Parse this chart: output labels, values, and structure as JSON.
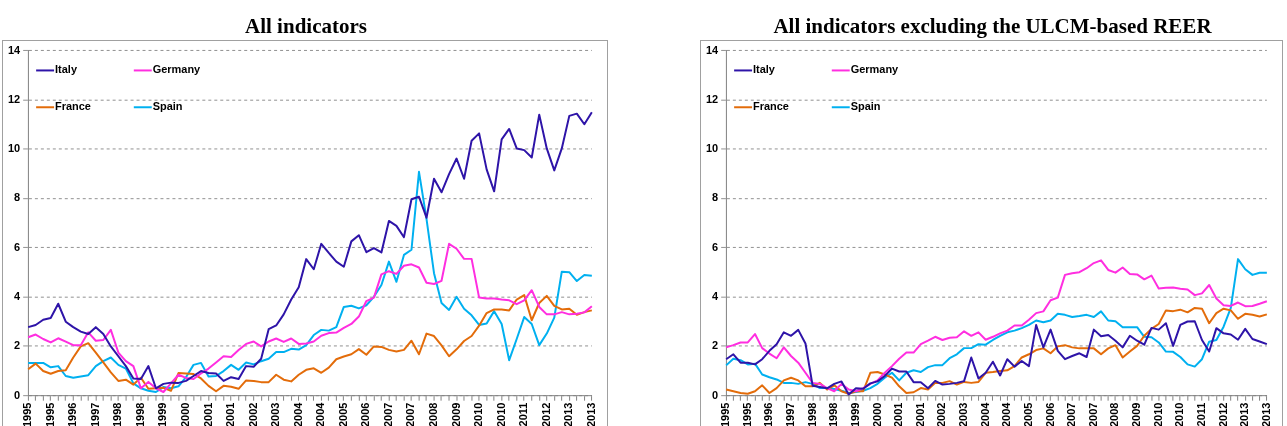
{
  "chart_data": [
    {
      "type": "line",
      "title": "All indicators",
      "categories": [
        "1995",
        null,
        null,
        "1995",
        null,
        null,
        "1996",
        null,
        null,
        "1997",
        null,
        null,
        "1998",
        null,
        null,
        "1998",
        null,
        null,
        "1999",
        null,
        null,
        "2000",
        null,
        null,
        "2001",
        null,
        null,
        "2001",
        null,
        null,
        "2002",
        null,
        null,
        "2003",
        null,
        null,
        "2004",
        null,
        null,
        "2004",
        null,
        null,
        "2005",
        null,
        null,
        "2006",
        null,
        null,
        "2007",
        null,
        null,
        "2007",
        null,
        null,
        "2008",
        null,
        null,
        "2009",
        null,
        null,
        "2010",
        null,
        null,
        "2010",
        null,
        null,
        "2011",
        null,
        null,
        "2012",
        null,
        null,
        "2013",
        null,
        null,
        "2013"
      ],
      "series": [
        {
          "name": "Italy",
          "color": "#2e14a8",
          "values": [
            2.78,
            2.87,
            3.08,
            3.15,
            3.73,
            3.0,
            2.78,
            2.6,
            2.5,
            2.78,
            2.5,
            2.0,
            1.6,
            1.2,
            0.7,
            0.68,
            1.2,
            0.3,
            0.48,
            0.53,
            0.52,
            0.6,
            0.8,
            1.0,
            0.92,
            0.9,
            0.6,
            0.75,
            0.68,
            1.2,
            1.17,
            1.5,
            2.7,
            2.85,
            3.3,
            3.9,
            4.4,
            5.54,
            5.13,
            6.16,
            5.79,
            5.44,
            5.23,
            6.26,
            6.51,
            5.82,
            5.99,
            5.81,
            7.09,
            6.89,
            6.43,
            7.97,
            8.07,
            7.22,
            8.8,
            8.25,
            8.99,
            9.62,
            8.8,
            10.34,
            10.64,
            9.18,
            8.29,
            10.4,
            10.82,
            10.03,
            9.96,
            9.66,
            11.4,
            10.03,
            9.14,
            10.03,
            11.35,
            11.44,
            11.01,
            11.5
          ]
        },
        {
          "name": "Germany",
          "color": "#ff2ee0",
          "values": [
            2.37,
            2.48,
            2.3,
            2.16,
            2.33,
            2.19,
            2.05,
            2.05,
            2.57,
            2.23,
            2.26,
            2.67,
            1.75,
            1.4,
            1.2,
            0.3,
            0.56,
            0.3,
            0.15,
            0.5,
            0.85,
            0.72,
            0.68,
            0.9,
            1.1,
            1.35,
            1.6,
            1.57,
            1.85,
            2.1,
            2.2,
            2.0,
            2.2,
            2.32,
            2.18,
            2.32,
            2.1,
            2.12,
            2.2,
            2.43,
            2.54,
            2.56,
            2.75,
            2.91,
            3.21,
            3.84,
            3.98,
            4.92,
            5.05,
            4.94,
            5.27,
            5.33,
            5.2,
            4.58,
            4.53,
            4.66,
            6.16,
            5.96,
            5.55,
            5.55,
            3.98,
            3.94,
            3.94,
            3.9,
            3.87,
            3.71,
            3.87,
            4.28,
            3.6,
            3.3,
            3.3,
            3.39,
            3.3,
            3.32,
            3.38,
            3.63
          ]
        },
        {
          "name": "France",
          "color": "#e36c0a",
          "values": [
            1.07,
            1.3,
            1.0,
            0.89,
            1.0,
            1.03,
            1.55,
            2.0,
            2.13,
            1.75,
            1.35,
            0.95,
            0.6,
            0.65,
            0.45,
            0.73,
            0.28,
            0.3,
            0.32,
            0.2,
            0.92,
            0.9,
            0.88,
            0.7,
            0.4,
            0.18,
            0.4,
            0.36,
            0.28,
            0.62,
            0.6,
            0.55,
            0.55,
            0.85,
            0.65,
            0.58,
            0.85,
            1.05,
            1.11,
            0.93,
            1.14,
            1.48,
            1.59,
            1.68,
            1.89,
            1.66,
            2.0,
            1.98,
            1.86,
            1.79,
            1.86,
            2.23,
            1.68,
            2.52,
            2.42,
            2.04,
            1.6,
            1.88,
            2.22,
            2.42,
            2.84,
            3.35,
            3.5,
            3.5,
            3.46,
            3.9,
            4.08,
            3.06,
            3.76,
            4.05,
            3.64,
            3.5,
            3.53,
            3.28,
            3.39,
            3.46
          ]
        },
        {
          "name": "Spain",
          "color": "#00b0f0",
          "values": [
            1.33,
            1.33,
            1.33,
            1.15,
            1.2,
            0.8,
            0.73,
            0.78,
            0.83,
            1.2,
            1.4,
            1.55,
            1.25,
            1.1,
            0.5,
            0.3,
            0.2,
            0.15,
            0.35,
            0.3,
            0.38,
            0.75,
            1.25,
            1.33,
            0.78,
            0.8,
            1.0,
            1.25,
            1.05,
            1.35,
            1.27,
            1.4,
            1.5,
            1.77,
            1.77,
            1.9,
            1.87,
            2.05,
            2.46,
            2.67,
            2.64,
            2.78,
            3.6,
            3.65,
            3.54,
            3.67,
            4.01,
            4.49,
            5.44,
            4.62,
            5.71,
            5.92,
            9.08,
            7.17,
            4.97,
            3.76,
            3.48,
            4.01,
            3.53,
            3.26,
            2.87,
            2.93,
            3.43,
            2.91,
            1.44,
            2.3,
            3.19,
            2.91,
            2.05,
            2.52,
            3.17,
            5.03,
            5.01,
            4.65,
            4.9,
            4.87
          ]
        }
      ],
      "ylim": [
        0,
        14
      ],
      "yticks": [
        0,
        2,
        4,
        6,
        8,
        10,
        12,
        14
      ],
      "grid": "y",
      "legend": "top left"
    },
    {
      "type": "line",
      "title": "All indicators excluding the ULCM-based REER",
      "categories": [
        "1995",
        null,
        null,
        "1995",
        null,
        null,
        "1996",
        null,
        null,
        "1997",
        null,
        null,
        "1998",
        null,
        null,
        "1998",
        null,
        null,
        "1999",
        null,
        null,
        "2000",
        null,
        null,
        "2001",
        null,
        null,
        "2001",
        null,
        null,
        "2002",
        null,
        null,
        "2003",
        null,
        null,
        "2004",
        null,
        null,
        "2004",
        null,
        null,
        "2005",
        null,
        null,
        "2006",
        null,
        null,
        "2007",
        null,
        null,
        "2007",
        null,
        null,
        "2008",
        null,
        null,
        "2009",
        null,
        null,
        "2010",
        null,
        null,
        "2010",
        null,
        null,
        "2011",
        null,
        null,
        "2012",
        null,
        null,
        "2013",
        null,
        null,
        "2013"
      ],
      "series": [
        {
          "name": "Italy",
          "color": "#2e14a8",
          "values": [
            1.48,
            1.68,
            1.34,
            1.34,
            1.27,
            1.48,
            1.82,
            2.09,
            2.57,
            2.43,
            2.67,
            2.12,
            0.4,
            0.35,
            0.3,
            0.48,
            0.58,
            0.05,
            0.3,
            0.28,
            0.5,
            0.58,
            0.8,
            1.1,
            0.98,
            0.98,
            0.55,
            0.55,
            0.3,
            0.6,
            0.45,
            0.48,
            0.52,
            0.59,
            1.55,
            0.7,
            0.93,
            1.38,
            0.82,
            1.48,
            1.18,
            1.41,
            1.2,
            2.87,
            1.96,
            2.68,
            1.82,
            1.48,
            1.61,
            1.72,
            1.57,
            2.68,
            2.41,
            2.46,
            2.23,
            1.96,
            2.43,
            2.23,
            2.07,
            2.75,
            2.68,
            2.94,
            2.02,
            2.87,
            3.01,
            3.02,
            2.26,
            1.79,
            2.74,
            2.53,
            2.48,
            2.27,
            2.71,
            2.3,
            2.2,
            2.09
          ]
        },
        {
          "name": "Germany",
          "color": "#ff2ee0",
          "values": [
            1.96,
            2.05,
            2.16,
            2.16,
            2.5,
            1.93,
            1.71,
            1.52,
            1.96,
            1.61,
            1.34,
            0.93,
            0.52,
            0.48,
            0.31,
            0.18,
            0.48,
            0.25,
            0.18,
            0.31,
            0.48,
            0.62,
            0.93,
            1.2,
            1.5,
            1.75,
            1.75,
            2.09,
            2.23,
            2.39,
            2.26,
            2.35,
            2.37,
            2.61,
            2.43,
            2.57,
            2.27,
            2.39,
            2.53,
            2.64,
            2.85,
            2.85,
            3.08,
            3.35,
            3.42,
            3.87,
            3.98,
            4.9,
            4.97,
            5.01,
            5.17,
            5.38,
            5.49,
            5.1,
            4.99,
            5.2,
            4.94,
            4.92,
            4.72,
            4.87,
            4.35,
            4.38,
            4.39,
            4.34,
            4.31,
            4.08,
            4.15,
            4.49,
            3.94,
            3.67,
            3.64,
            3.78,
            3.63,
            3.64,
            3.73,
            3.83
          ]
        },
        {
          "name": "France",
          "color": "#e36c0a",
          "values": [
            0.25,
            0.18,
            0.11,
            0.08,
            0.18,
            0.42,
            0.11,
            0.31,
            0.62,
            0.73,
            0.62,
            0.38,
            0.38,
            0.52,
            0.25,
            0.42,
            0.18,
            0.08,
            0.18,
            0.18,
            0.93,
            0.96,
            0.86,
            0.73,
            0.38,
            0.11,
            0.14,
            0.31,
            0.25,
            0.52,
            0.52,
            0.59,
            0.45,
            0.56,
            0.52,
            0.56,
            0.93,
            0.96,
            1.0,
            1.03,
            1.2,
            1.55,
            1.68,
            1.85,
            1.92,
            1.72,
            2.0,
            2.05,
            1.96,
            1.92,
            1.92,
            1.92,
            1.68,
            1.92,
            2.05,
            1.55,
            1.79,
            2.02,
            2.43,
            2.71,
            2.91,
            3.46,
            3.43,
            3.49,
            3.38,
            3.56,
            3.53,
            2.94,
            3.35,
            3.53,
            3.46,
            3.12,
            3.32,
            3.28,
            3.21,
            3.3
          ]
        },
        {
          "name": "Spain",
          "color": "#00b0f0",
          "values": [
            1.23,
            1.5,
            1.44,
            1.27,
            1.3,
            0.86,
            0.75,
            0.66,
            0.52,
            0.52,
            0.48,
            0.55,
            0.48,
            0.31,
            0.31,
            0.27,
            0.2,
            0.11,
            0.15,
            0.2,
            0.31,
            0.48,
            0.73,
            0.93,
            0.62,
            0.93,
            1.03,
            0.96,
            1.16,
            1.24,
            1.24,
            1.52,
            1.68,
            1.93,
            1.93,
            2.09,
            2.07,
            2.26,
            2.43,
            2.57,
            2.64,
            2.74,
            2.87,
            3.05,
            2.98,
            3.05,
            3.32,
            3.28,
            3.19,
            3.23,
            3.28,
            3.19,
            3.42,
            3.05,
            3.02,
            2.78,
            2.78,
            2.78,
            2.39,
            2.37,
            2.16,
            1.79,
            1.78,
            1.57,
            1.27,
            1.18,
            1.48,
            2.19,
            2.26,
            2.8,
            3.56,
            5.54,
            5.13,
            4.9,
            4.99,
            4.99
          ]
        }
      ],
      "ylim": [
        0,
        14
      ],
      "yticks": [
        0,
        2,
        4,
        6,
        8,
        10,
        12,
        14
      ],
      "grid": "y",
      "legend": "top left"
    }
  ]
}
